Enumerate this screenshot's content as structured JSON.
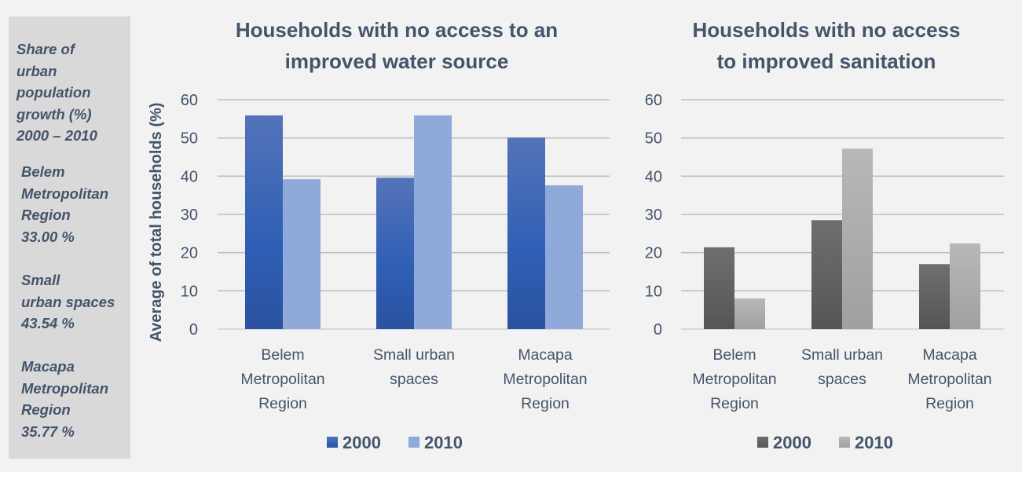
{
  "side_panel": {
    "heading_lines": [
      "Share of",
      "urban",
      "population",
      "growth (%)",
      "2000 – 2010"
    ],
    "regions": [
      {
        "lines": [
          "Belem",
          "Metropolitan",
          "Region",
          "33.00 %"
        ],
        "value": 33.0
      },
      {
        "lines": [
          "Small",
          "urban spaces",
          "43.54 %"
        ],
        "value": 43.54
      },
      {
        "lines": [
          "Macapa",
          "Metropolitan",
          "Region",
          "35.77 %"
        ],
        "value": 35.77
      }
    ]
  },
  "chart_data": [
    {
      "type": "bar",
      "title": "Households with no access to an improved water source",
      "title_lines": [
        "Households with no access to an",
        "improved water source"
      ],
      "xlabel": "",
      "ylabel": "Average of total households (%)",
      "ylim": [
        0,
        60
      ],
      "yticks": [
        0,
        10,
        20,
        30,
        40,
        50,
        60
      ],
      "grid": true,
      "legend_position": "bottom",
      "categories": [
        "Belem Metropolitan Region",
        "Small urban spaces",
        "Macapa Metropolitan Region"
      ],
      "category_lines": [
        [
          "Belem",
          "Metropolitan",
          "Region"
        ],
        [
          "Small urban",
          "spaces"
        ],
        [
          "Macapa",
          "Metropolitan",
          "Region"
        ]
      ],
      "series": [
        {
          "name": "2000",
          "color": "#2f57a8",
          "values": [
            55.9,
            39.6,
            50.1
          ]
        },
        {
          "name": "2010",
          "color": "#8eaadb",
          "values": [
            39.2,
            55.9,
            37.6
          ]
        }
      ]
    },
    {
      "type": "bar",
      "title": "Households with no access to improved sanitation",
      "title_lines": [
        "Households with no access",
        "to improved sanitation"
      ],
      "xlabel": "",
      "ylabel": "",
      "ylim": [
        0,
        60
      ],
      "yticks": [
        0,
        10,
        20,
        30,
        40,
        50,
        60
      ],
      "grid": true,
      "legend_position": "bottom",
      "categories": [
        "Belem Metropolitan Region",
        "Small urban spaces",
        "Macapa Metropolitan Region"
      ],
      "category_lines": [
        [
          "Belem",
          "Metropolitan",
          "Region"
        ],
        [
          "Small urban",
          "spaces"
        ],
        [
          "Macapa",
          "Metropolitan",
          "Region"
        ]
      ],
      "series": [
        {
          "name": "2000",
          "color": "#595959",
          "values": [
            21.4,
            28.5,
            17.0
          ]
        },
        {
          "name": "2010",
          "color": "#b0b0b0",
          "values": [
            8.0,
            47.2,
            22.4
          ]
        }
      ]
    }
  ]
}
